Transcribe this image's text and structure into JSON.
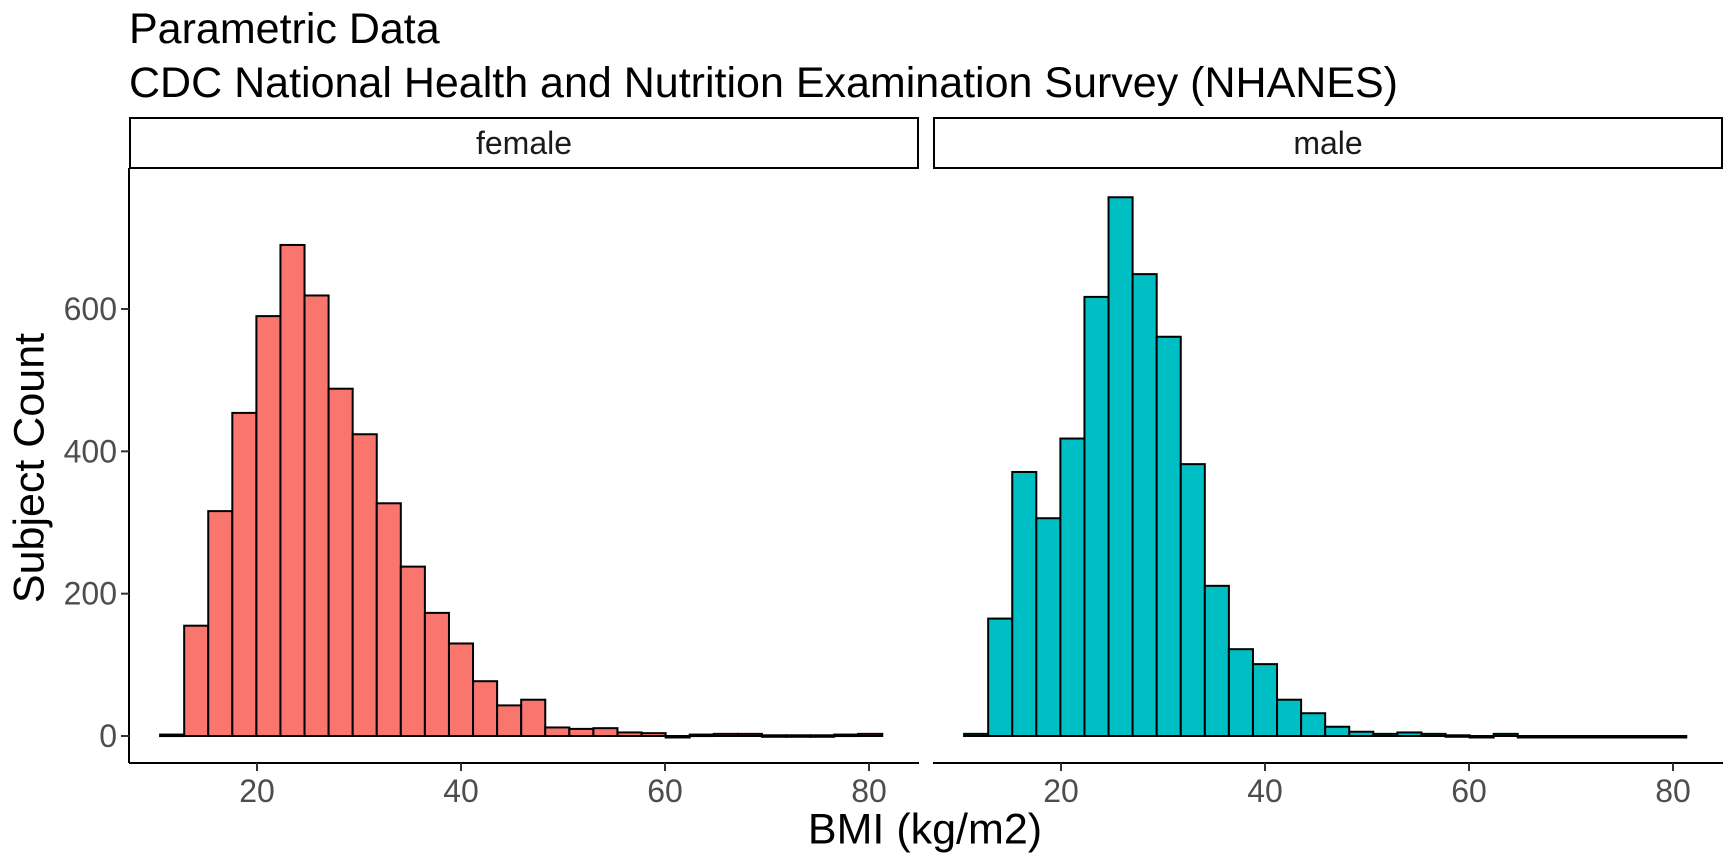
{
  "chart_data": {
    "type": "bar",
    "title": "Parametric Data",
    "subtitle": "CDC National Health and Nutrition Examination Survey (NHANES)",
    "xlabel": "BMI (kg/m2)",
    "ylabel": "Subject Count",
    "xlim": [
      10,
      81
    ],
    "ylim": [
      0,
      750
    ],
    "x_ticks": [
      20,
      40,
      60,
      80
    ],
    "y_ticks": [
      0,
      200,
      400,
      600
    ],
    "bin_width": 2.36,
    "bin_start": 10.5,
    "grid": false,
    "legend": "none",
    "panels": [
      {
        "name": "female",
        "color": "#F8766D",
        "values": [
          2,
          155,
          316,
          454,
          590,
          690,
          619,
          488,
          424,
          327,
          238,
          173,
          130,
          77,
          43,
          51,
          12,
          10,
          11,
          5,
          4,
          0,
          2,
          3,
          3,
          1,
          1,
          1,
          2,
          3
        ]
      },
      {
        "name": "male",
        "color": "#00BFC4",
        "values": [
          3,
          165,
          371,
          306,
          418,
          617,
          757,
          649,
          561,
          382,
          211,
          122,
          101,
          51,
          32,
          13,
          6,
          3,
          5,
          3,
          1,
          0,
          3,
          0,
          0,
          0,
          0,
          0,
          0,
          0
        ]
      }
    ]
  }
}
